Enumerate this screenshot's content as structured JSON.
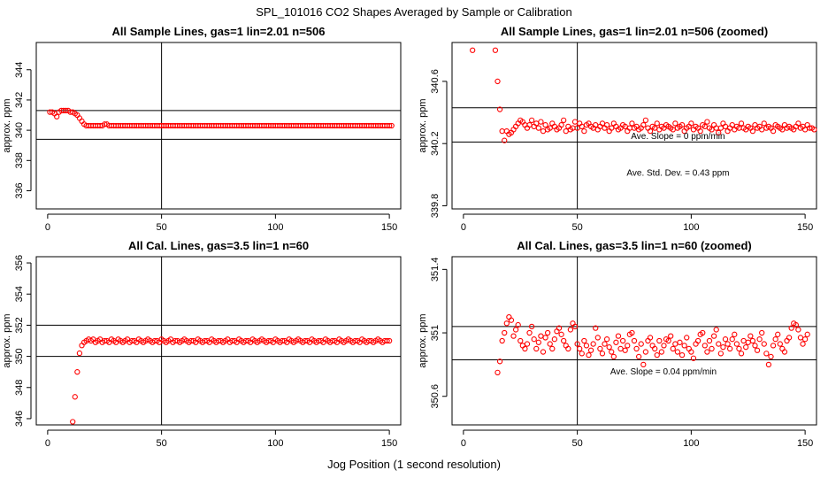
{
  "page_title": "SPL_101016  CO2 Shapes Averaged by Sample or Calibration",
  "x_axis_label": "Jog Position (1 second resolution)",
  "colors": {
    "points": "#ff0000",
    "lines": "#000000"
  },
  "chart_data": [
    {
      "type": "scatter",
      "title": "All Sample Lines, gas=1 lin=2.01 n=506",
      "xlabel": "",
      "ylabel": "approx. ppm",
      "xlim": [
        -5,
        155
      ],
      "ylim": [
        334.8,
        345.8
      ],
      "xticks": [
        0,
        50,
        100,
        150
      ],
      "yticks": [
        336,
        338,
        340,
        342,
        344
      ],
      "hlines": [
        341.3,
        339.4
      ],
      "vline": 50,
      "annotations": [],
      "series": [
        {
          "start_x": 1,
          "values": [
            341.2,
            341.2,
            341.1,
            340.9,
            341.2,
            341.3,
            341.3,
            341.3,
            341.3,
            341.2,
            341.2,
            341.1,
            341.0,
            340.8,
            340.6,
            340.4,
            340.3,
            340.3,
            340.3,
            340.3,
            340.3,
            340.3,
            340.3,
            340.3,
            340.4,
            340.4,
            340.3,
            340.3,
            340.3,
            340.3,
            340.3,
            340.3,
            340.3,
            340.3,
            340.3,
            340.3,
            340.3,
            340.3,
            340.3,
            340.3,
            340.3,
            340.3,
            340.3,
            340.3,
            340.3,
            340.3,
            340.3,
            340.3,
            340.3,
            340.3,
            340.3,
            340.3,
            340.3,
            340.3,
            340.3,
            340.3,
            340.3,
            340.3,
            340.3,
            340.3,
            340.3,
            340.3,
            340.3,
            340.3,
            340.3,
            340.3,
            340.3,
            340.3,
            340.3,
            340.3,
            340.3,
            340.3,
            340.3,
            340.3,
            340.3,
            340.3,
            340.3,
            340.3,
            340.3,
            340.3,
            340.3,
            340.3,
            340.3,
            340.3,
            340.3,
            340.3,
            340.3,
            340.3,
            340.3,
            340.3,
            340.3,
            340.3,
            340.3,
            340.3,
            340.3,
            340.3,
            340.3,
            340.3,
            340.3,
            340.3,
            340.3,
            340.3,
            340.3,
            340.3,
            340.3,
            340.3,
            340.3,
            340.3,
            340.3,
            340.3,
            340.3,
            340.3,
            340.3,
            340.3,
            340.3,
            340.3,
            340.3,
            340.3,
            340.3,
            340.3,
            340.3,
            340.3,
            340.3,
            340.3,
            340.3,
            340.3,
            340.3,
            340.3,
            340.3,
            340.3,
            340.3,
            340.3,
            340.3,
            340.3,
            340.3,
            340.3,
            340.3,
            340.3,
            340.3,
            340.3,
            340.3,
            340.3,
            340.3,
            340.3,
            340.3,
            340.3,
            340.3,
            340.3,
            340.3,
            340.3,
            340.3
          ]
        }
      ]
    },
    {
      "type": "scatter",
      "title": "All Sample Lines, gas=1 lin=2.01 n=506 (zoomed)",
      "xlabel": "",
      "ylabel": "approx. ppm",
      "xlim": [
        -5,
        155
      ],
      "ylim": [
        339.78,
        340.85
      ],
      "xticks": [
        0,
        50,
        100,
        150
      ],
      "yticks": [
        339.8,
        340.2,
        340.6
      ],
      "hlines": [
        340.43,
        340.21
      ],
      "vline": 50,
      "annotations": [
        "Ave. Slope =  0  ppm/min",
        "Ave. Std. Dev. =  0.43  ppm"
      ],
      "series": [
        {
          "start_x": 4,
          "values": [
            340.8,
            null,
            null,
            null,
            null,
            null,
            null,
            null,
            null,
            null,
            340.8,
            340.6,
            340.42,
            340.28,
            340.22,
            340.28,
            340.26,
            340.27,
            340.29,
            340.31,
            340.33,
            340.35,
            340.34,
            340.32,
            340.3,
            340.32,
            340.35,
            340.31,
            340.33,
            340.3,
            340.34,
            340.28,
            340.32,
            340.29,
            340.3,
            340.33,
            340.31,
            340.29,
            340.3,
            340.32,
            340.35,
            340.28,
            340.31,
            340.29,
            340.3,
            340.34,
            340.3,
            340.33,
            340.31,
            340.28,
            340.32,
            340.33,
            340.31,
            340.3,
            340.32,
            340.29,
            340.31,
            340.33,
            340.3,
            340.32,
            340.28,
            340.3,
            340.33,
            340.31,
            340.29,
            340.3,
            340.32,
            340.31,
            340.28,
            340.3,
            340.33,
            340.3,
            340.31,
            340.29,
            340.3,
            340.32,
            340.35,
            340.3,
            340.28,
            340.31,
            340.3,
            340.33,
            340.29,
            340.31,
            340.3,
            340.32,
            340.31,
            340.3,
            340.29,
            340.33,
            340.3,
            340.31,
            340.32,
            340.28,
            340.3,
            340.31,
            340.33,
            340.29,
            340.31,
            340.3,
            340.28,
            340.32,
            340.31,
            340.34,
            340.3,
            340.29,
            340.32,
            340.3,
            340.27,
            340.3,
            340.33,
            340.31,
            340.28,
            340.3,
            340.32,
            340.29,
            340.31,
            340.3,
            340.33,
            340.3,
            340.29,
            340.31,
            340.3,
            340.28,
            340.32,
            340.3,
            340.31,
            340.29,
            340.33,
            340.3,
            340.31,
            340.3,
            340.28,
            340.32,
            340.31,
            340.3,
            340.29,
            340.32,
            340.3,
            340.31,
            340.3,
            340.29,
            340.31,
            340.33,
            340.3,
            340.31,
            340.29,
            340.32,
            340.3,
            340.3,
            340.29
          ]
        }
      ]
    },
    {
      "type": "scatter",
      "title": "All Cal. Lines, gas=3.5 lin=1 n=60",
      "xlabel": "",
      "ylabel": "approx. ppm",
      "xlim": [
        -5,
        155
      ],
      "ylim": [
        345.6,
        356.4
      ],
      "xticks": [
        0,
        50,
        100,
        150
      ],
      "yticks": [
        346,
        348,
        350,
        352,
        354,
        356
      ],
      "hlines": [
        352.0,
        350.0
      ],
      "vline": 50,
      "annotations": [],
      "series": [
        {
          "start_x": 11,
          "values": [
            345.8,
            347.4,
            349.0,
            350.2,
            350.7,
            350.9,
            351.0,
            351.1,
            351.0,
            351.1,
            350.9,
            351.0,
            351.1,
            350.9,
            351.0,
            351.0,
            350.9,
            351.1,
            351.0,
            350.9,
            351.1,
            351.0,
            350.9,
            351.0,
            351.1,
            350.9,
            351.0,
            351.0,
            350.9,
            351.1,
            351.0,
            350.9,
            351.0,
            351.1,
            351.0,
            350.9,
            351.0,
            351.0,
            350.9,
            351.1,
            351.0,
            350.9,
            351.0,
            351.1,
            350.9,
            351.0,
            351.0,
            350.9,
            351.0,
            351.1,
            351.0,
            350.9,
            351.0,
            351.0,
            350.9,
            351.1,
            351.0,
            350.9,
            351.0,
            351.0,
            350.9,
            351.1,
            351.0,
            350.9,
            351.0,
            351.0,
            350.9,
            351.0,
            351.1,
            350.9,
            351.0,
            351.0,
            350.9,
            351.1,
            351.0,
            350.9,
            351.0,
            351.0,
            350.9,
            351.1,
            351.0,
            350.9,
            351.0,
            351.1,
            351.0,
            350.9,
            351.0,
            351.0,
            350.9,
            351.1,
            351.0,
            350.9,
            351.0,
            351.0,
            350.9,
            351.1,
            351.0,
            350.9,
            351.0,
            351.1,
            351.0,
            350.9,
            351.0,
            351.0,
            350.9,
            351.1,
            351.0,
            350.9,
            351.0,
            351.0,
            350.9,
            351.1,
            351.0,
            350.9,
            351.0,
            351.0,
            350.9,
            351.1,
            351.0,
            350.9,
            351.0,
            351.1,
            351.0,
            350.9,
            351.0,
            351.0,
            350.9,
            351.1,
            351.0,
            350.9,
            351.0,
            351.0,
            350.9,
            351.0,
            351.1,
            351.0,
            350.9,
            351.0,
            351.0,
            351.0
          ]
        }
      ]
    },
    {
      "type": "scatter",
      "title": "All Cal. Lines, gas=3.5 lin=1 n=60 (zoomed)",
      "xlabel": "",
      "ylabel": "approx. ppm",
      "xlim": [
        -5,
        155
      ],
      "ylim": [
        350.42,
        351.48
      ],
      "xticks": [
        0,
        50,
        100,
        150
      ],
      "yticks": [
        350.6,
        351.0,
        351.4
      ],
      "hlines": [
        351.04,
        350.83
      ],
      "vline": 50,
      "annotations": [
        "Ave. Slope =  0.04  ppm/min"
      ],
      "series": [
        {
          "start_x": 15,
          "values": [
            350.75,
            350.82,
            350.95,
            351.0,
            351.06,
            351.1,
            351.08,
            350.98,
            351.02,
            351.05,
            350.95,
            350.92,
            350.9,
            350.93,
            351.0,
            351.04,
            350.96,
            350.9,
            350.94,
            350.98,
            350.88,
            350.97,
            351.0,
            350.93,
            350.9,
            350.96,
            351.01,
            351.03,
            350.99,
            350.95,
            350.92,
            350.9,
            351.02,
            351.06,
            351.04,
            350.93,
            350.9,
            350.87,
            350.95,
            350.92,
            350.86,
            350.89,
            350.93,
            351.03,
            350.97,
            350.9,
            350.87,
            350.93,
            350.96,
            350.91,
            350.88,
            350.85,
            350.94,
            350.98,
            350.9,
            350.95,
            350.89,
            350.92,
            350.99,
            351.0,
            350.95,
            350.9,
            350.85,
            350.93,
            350.8,
            350.88,
            350.95,
            350.97,
            350.92,
            350.9,
            350.86,
            350.95,
            350.88,
            350.92,
            350.96,
            350.95,
            350.98,
            350.9,
            350.93,
            350.88,
            350.94,
            350.86,
            350.92,
            350.97,
            350.9,
            350.88,
            350.84,
            350.93,
            350.95,
            350.99,
            351.0,
            350.92,
            350.88,
            350.95,
            350.9,
            350.98,
            351.02,
            350.93,
            350.87,
            350.91,
            350.96,
            350.93,
            350.9,
            350.96,
            350.99,
            350.93,
            350.9,
            350.87,
            350.95,
            350.91,
            350.94,
            350.98,
            350.95,
            350.92,
            350.89,
            350.96,
            351.0,
            350.93,
            350.87,
            350.8,
            350.85,
            350.92,
            350.96,
            350.99,
            350.93,
            350.9,
            350.88,
            350.95,
            350.97,
            351.03,
            351.06,
            351.05,
            351.02,
            350.97,
            350.93,
            350.96,
            350.99
          ]
        }
      ]
    }
  ]
}
